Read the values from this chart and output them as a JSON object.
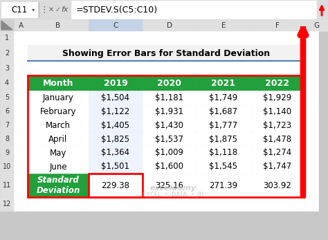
{
  "title": "Showing Error Bars for Standard Deviation",
  "formula_bar_text": "=STDEV.S(C5:C10)",
  "cell_ref": "C11",
  "col_headers": [
    "Month",
    "2019",
    "2020",
    "2021",
    "2022"
  ],
  "row_labels": [
    "January",
    "February",
    "March",
    "April",
    "May",
    "June"
  ],
  "data": [
    [
      "$1,504",
      "$1,181",
      "$1,749",
      "$1,929"
    ],
    [
      "$1,122",
      "$1,931",
      "$1,687",
      "$1,140"
    ],
    [
      "$1,405",
      "$1,430",
      "$1,777",
      "$1,723"
    ],
    [
      "$1,825",
      "$1,537",
      "$1,875",
      "$1,478"
    ],
    [
      "$1,364",
      "$1,009",
      "$1,118",
      "$1,274"
    ],
    [
      "$1,501",
      "$1,600",
      "$1,545",
      "$1,747"
    ]
  ],
  "std_row_label": "Standard\nDeviation",
  "std_values": [
    "229.38",
    "325.16",
    "271.39",
    "303.92"
  ],
  "header_bg": "#21A03C",
  "header_fg": "#FFFFFF",
  "std_row_bg": "#21A03C",
  "std_row_fg": "#FFFFFF",
  "cell_bg": "#FFFFFF",
  "grid_color": "#BBBBBB",
  "excel_ui_bg": "#C8C8C8",
  "col_header_bg": "#E0E0E0",
  "col_header_sel_bg": "#C5D3E8",
  "row_header_bg": "#E0E0E0",
  "formula_bar_red_border": "#FF0000",
  "red_arrow_color": "#FF0000",
  "table_red_border": "#FF0000",
  "selected_cell_border": "#FF0000",
  "title_row_bg": "#F2F2F2",
  "watermark_color": "#BBBBBB"
}
